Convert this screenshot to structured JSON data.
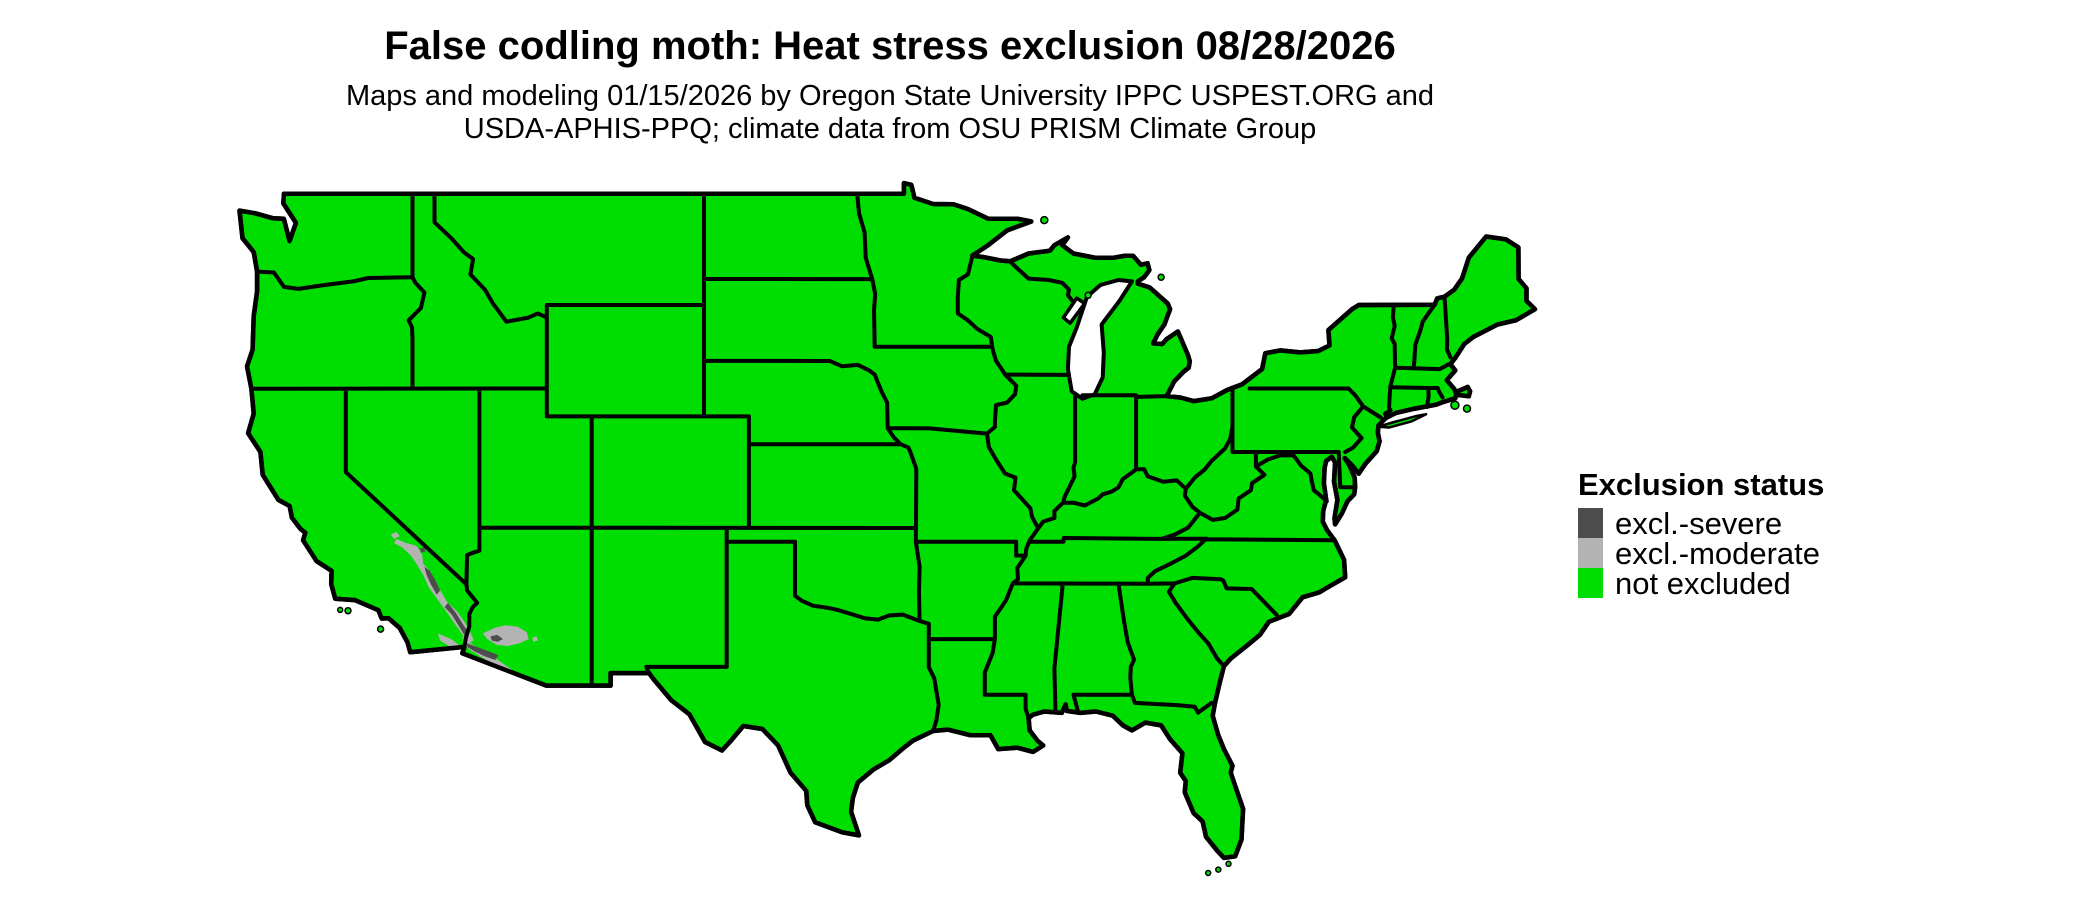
{
  "header": {
    "title": "False codling moth: Heat stress exclusion 08/28/2026",
    "subtitle_line1": "Maps and modeling 01/15/2026 by Oregon State University IPPC USPEST.ORG and",
    "subtitle_line2": "USDA-APHIS-PPQ; climate data from OSU PRISM Climate Group"
  },
  "legend": {
    "title": "Exclusion status",
    "items": [
      {
        "label": "excl.-severe",
        "color": "#4D4D4D"
      },
      {
        "label": "excl.-moderate",
        "color": "#B3B3B3"
      },
      {
        "label": "not excluded",
        "color": "#00DD00"
      }
    ]
  },
  "map": {
    "name": "contiguous-united-states",
    "land_status": "not excluded",
    "land_color": "#00DD00",
    "border_color": "#000000",
    "water_color": "#FFFFFF",
    "exclusion_patches": [
      {
        "status": "excl.-severe",
        "location": "lower Colorado River valley (southeastern California / southwestern Arizona border)"
      },
      {
        "status": "excl.-moderate",
        "location": "Mojave and Sonoran desert areas of southeastern California and southern Arizona"
      }
    ]
  }
}
